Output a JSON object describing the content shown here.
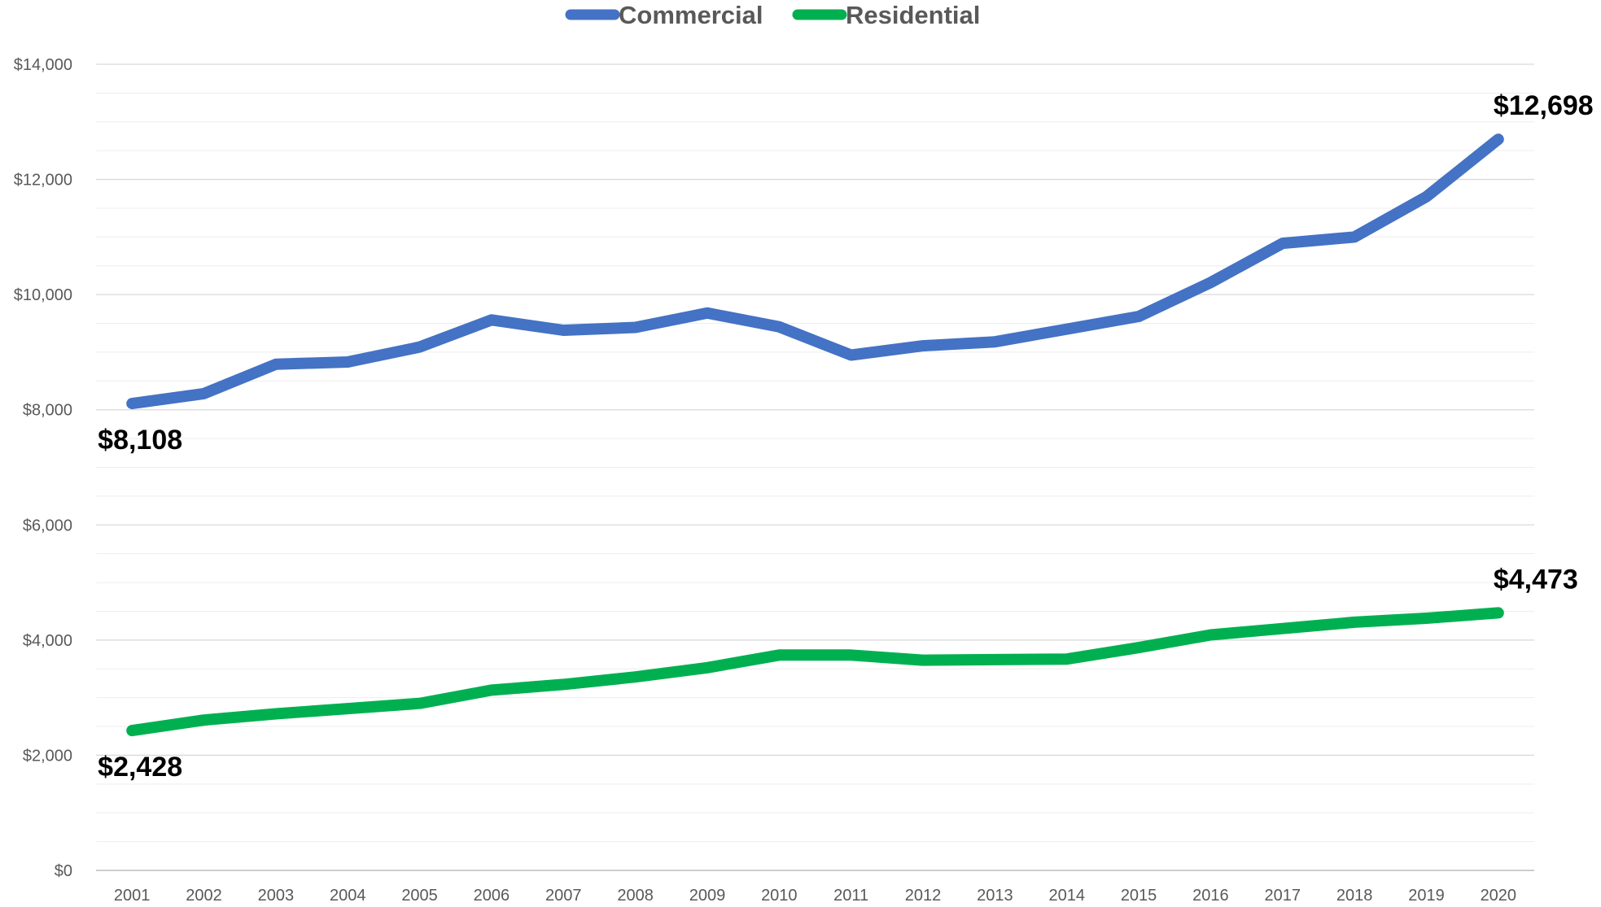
{
  "chart_data": {
    "type": "line",
    "title": "",
    "xlabel": "",
    "ylabel": "",
    "categories": [
      "2001",
      "2002",
      "2003",
      "2004",
      "2005",
      "2006",
      "2007",
      "2008",
      "2009",
      "2010",
      "2011",
      "2012",
      "2013",
      "2014",
      "2015",
      "2016",
      "2017",
      "2018",
      "2019",
      "2020"
    ],
    "ylim": [
      0,
      14000
    ],
    "yticks": [
      0,
      2000,
      4000,
      6000,
      8000,
      10000,
      12000,
      14000
    ],
    "ytick_labels": [
      "$0",
      "$2,000",
      "$4,000",
      "$6,000",
      "$8,000",
      "$10,000",
      "$12,000",
      "$14,000"
    ],
    "grid": true,
    "legend_position": "top-center",
    "series": [
      {
        "name": "Commercial",
        "color": "#4472C4",
        "values": [
          8108,
          8280,
          8790,
          8830,
          9090,
          9560,
          9380,
          9430,
          9680,
          9440,
          8950,
          9110,
          9180,
          9400,
          9620,
          10210,
          10890,
          11000,
          11700,
          12698
        ],
        "labels": {
          "first": "$8,108",
          "last": "$12,698"
        }
      },
      {
        "name": "Residential",
        "color": "#00B050",
        "values": [
          2428,
          2610,
          2720,
          2810,
          2900,
          3130,
          3230,
          3360,
          3520,
          3740,
          3740,
          3650,
          3660,
          3670,
          3870,
          4090,
          4200,
          4310,
          4380,
          4473
        ],
        "labels": {
          "first": "$2,428",
          "last": "$4,473"
        }
      }
    ]
  }
}
